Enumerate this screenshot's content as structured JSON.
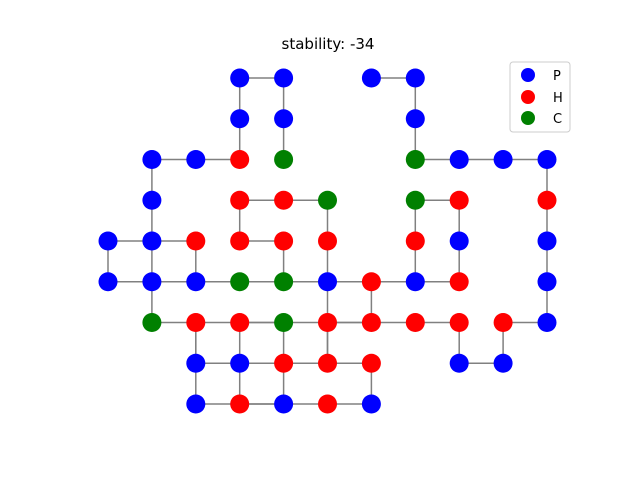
{
  "chart_data": {
    "type": "scatter",
    "title": "stability: -34",
    "legend_position": "top-right",
    "colors": {
      "P": "#0000ff",
      "H": "#ff0000",
      "C": "#008000"
    },
    "legend": [
      {
        "label": "P",
        "type": "P"
      },
      {
        "label": "H",
        "type": "H"
      },
      {
        "label": "C",
        "type": "C"
      }
    ],
    "chain": [
      {
        "x": 3,
        "y": 8,
        "type": "P"
      },
      {
        "x": 4,
        "y": 8,
        "type": "P"
      },
      {
        "x": 4,
        "y": 7,
        "type": "P"
      },
      {
        "x": 4,
        "y": 6,
        "type": "C"
      },
      {
        "x": 5,
        "y": 6,
        "type": "P"
      },
      {
        "x": 6,
        "y": 6,
        "type": "P"
      },
      {
        "x": 7,
        "y": 6,
        "type": "P"
      },
      {
        "x": 7,
        "y": 5,
        "type": "H"
      },
      {
        "x": 7,
        "y": 4,
        "type": "P"
      },
      {
        "x": 7,
        "y": 3,
        "type": "P"
      },
      {
        "x": 7,
        "y": 2,
        "type": "P"
      },
      {
        "x": 6,
        "y": 2,
        "type": "H"
      },
      {
        "x": 6,
        "y": 1,
        "type": "P"
      },
      {
        "x": 5,
        "y": 1,
        "type": "P"
      },
      {
        "x": 5,
        "y": 2,
        "type": "H"
      },
      {
        "x": 4,
        "y": 2,
        "type": "H"
      },
      {
        "x": 3,
        "y": 2,
        "type": "H"
      },
      {
        "x": 2,
        "y": 2,
        "type": "H"
      },
      {
        "x": 2,
        "y": 1,
        "type": "H"
      },
      {
        "x": 1,
        "y": 1,
        "type": "H"
      },
      {
        "x": 1,
        "y": 2,
        "type": "C"
      },
      {
        "x": 0,
        "y": 2,
        "type": "H"
      },
      {
        "x": 0,
        "y": 1,
        "type": "P"
      },
      {
        "x": 1,
        "y": 1,
        "type": "H"
      },
      {
        "x": 1,
        "y": 0,
        "type": "P"
      },
      {
        "x": 2,
        "y": 0,
        "type": "H"
      },
      {
        "x": 3,
        "y": 0,
        "type": "P"
      },
      {
        "x": 3,
        "y": 1,
        "type": "H"
      },
      {
        "x": 2,
        "y": 1,
        "type": "H"
      },
      {
        "x": 2,
        "y": 2,
        "type": "H"
      },
      {
        "x": 2,
        "y": 3,
        "type": "P"
      },
      {
        "x": 1,
        "y": 3,
        "type": "C"
      },
      {
        "x": 0,
        "y": 3,
        "type": "C"
      },
      {
        "x": -1,
        "y": 3,
        "type": "P"
      },
      {
        "x": -1,
        "y": 4,
        "type": "H"
      },
      {
        "x": -2,
        "y": 4,
        "type": "P"
      },
      {
        "x": -2,
        "y": 3,
        "type": "P"
      },
      {
        "x": -1,
        "y": 3,
        "type": "C"
      },
      {
        "x": 0,
        "y": 3,
        "type": "C"
      },
      {
        "x": 1,
        "y": 3,
        "type": "P"
      },
      {
        "x": 1,
        "y": 4,
        "type": "H"
      },
      {
        "x": 0,
        "y": 4,
        "type": "H"
      },
      {
        "x": 0,
        "y": 5,
        "type": "H"
      },
      {
        "x": 1,
        "y": 5,
        "type": "H"
      },
      {
        "x": 2,
        "y": 5,
        "type": "C"
      },
      {
        "x": 2,
        "y": 4,
        "type": "H"
      },
      {
        "x": 2,
        "y": 3,
        "type": "P"
      },
      {
        "x": 3,
        "y": 3,
        "type": "H"
      },
      {
        "x": 4,
        "y": 3,
        "type": "P"
      },
      {
        "x": 4,
        "y": 4,
        "type": "H"
      },
      {
        "x": 4,
        "y": 5,
        "type": "C"
      },
      {
        "x": 5,
        "y": 5,
        "type": "H"
      },
      {
        "x": 5,
        "y": 4,
        "type": "P"
      },
      {
        "x": 5,
        "y": 3,
        "type": "H"
      },
      {
        "x": 4,
        "y": 3,
        "type": "P"
      },
      {
        "x": 3,
        "y": 3,
        "type": "H"
      },
      {
        "x": 3,
        "y": 2,
        "type": "H"
      },
      {
        "x": 2,
        "y": 2,
        "type": "H"
      },
      {
        "x": 1,
        "y": 2,
        "type": "C"
      },
      {
        "x": 0,
        "y": 2,
        "type": "H"
      },
      {
        "x": -1,
        "y": 2,
        "type": "H"
      },
      {
        "x": -1,
        "y": 1,
        "type": "P"
      },
      {
        "x": 0,
        "y": 1,
        "type": "P"
      },
      {
        "x": 0,
        "y": 0,
        "type": "H"
      },
      {
        "x": 1,
        "y": 0,
        "type": "P"
      },
      {
        "x": 0,
        "y": 0,
        "type": "H"
      },
      {
        "x": -1,
        "y": 0,
        "type": "P"
      },
      {
        "x": -1,
        "y": 1,
        "type": "P"
      },
      {
        "x": -1,
        "y": 2,
        "type": "H"
      },
      {
        "x": -2,
        "y": 2,
        "type": "C"
      },
      {
        "x": -2,
        "y": 3,
        "type": "P"
      },
      {
        "x": -3,
        "y": 3,
        "type": "P"
      },
      {
        "x": -3,
        "y": 4,
        "type": "P"
      },
      {
        "x": -2,
        "y": 4,
        "type": "P"
      },
      {
        "x": -2,
        "y": 5,
        "type": "P"
      },
      {
        "x": -2,
        "y": 6,
        "type": "P"
      },
      {
        "x": -1,
        "y": 6,
        "type": "P"
      },
      {
        "x": 0,
        "y": 6,
        "type": "H"
      },
      {
        "x": 0,
        "y": 7,
        "type": "P"
      },
      {
        "x": 0,
        "y": 8,
        "type": "P"
      },
      {
        "x": 1,
        "y": 8,
        "type": "P"
      },
      {
        "x": 1,
        "y": 7,
        "type": "P"
      },
      {
        "x": 1,
        "y": 6,
        "type": "C"
      }
    ],
    "xlim": [
      -3.2,
      7.2
    ],
    "ylim": [
      -0.3,
      8.3
    ]
  }
}
